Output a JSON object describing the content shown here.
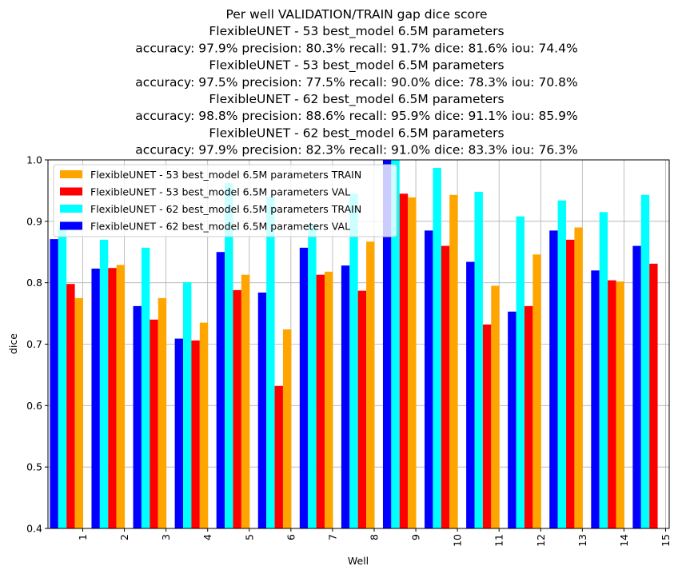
{
  "chart_data": {
    "type": "bar",
    "title_lines": [
      "Per well VALIDATION/TRAIN gap dice score",
      "FlexibleUNET - 53 best_model 6.5M parameters",
      "accuracy: 97.9% precision: 80.3% recall: 91.7% dice: 81.6% iou: 74.4%",
      "FlexibleUNET - 53 best_model 6.5M parameters",
      "accuracy: 97.5% precision: 77.5% recall: 90.0% dice: 78.3% iou: 70.8%",
      "FlexibleUNET - 62 best_model 6.5M parameters",
      "accuracy: 98.8% precision: 88.6% recall: 95.9% dice: 91.1% iou: 85.9%",
      "FlexibleUNET - 62 best_model 6.5M parameters",
      "accuracy: 97.9% precision: 82.3% recall: 91.0% dice: 83.3% iou: 76.3%"
    ],
    "xlabel": "Well",
    "ylabel": "dice",
    "ylim": [
      0.4,
      1.0
    ],
    "yticks": [
      "0.4",
      "0.5",
      "0.6",
      "0.7",
      "0.8",
      "0.9",
      "1.0"
    ],
    "grid": true,
    "legend_position": "top-left",
    "categories": [
      "1",
      "2",
      "3",
      "4",
      "5",
      "6",
      "7",
      "8",
      "9",
      "10",
      "11",
      "12",
      "13",
      "14",
      "15"
    ],
    "series": [
      {
        "name": "FlexibleUNET - 62 best_model 6.5M parameters VAL",
        "color": "#0000ff",
        "values": [
          0.871,
          0.823,
          0.762,
          0.709,
          0.85,
          0.784,
          0.857,
          0.828,
          1.0,
          0.885,
          0.834,
          0.753,
          0.885,
          0.82,
          0.86
        ]
      },
      {
        "name": "FlexibleUNET - 62 best_model 6.5M parameters TRAIN",
        "color": "#00ffff",
        "values": [
          0.893,
          0.87,
          0.857,
          0.801,
          0.962,
          0.94,
          0.895,
          0.945,
          1.0,
          0.987,
          0.948,
          0.908,
          0.934,
          0.915,
          0.943
        ]
      },
      {
        "name": "FlexibleUNET - 53 best_model 6.5M parameters VAL",
        "color": "#ff0000",
        "values": [
          0.798,
          0.824,
          0.74,
          0.706,
          0.788,
          0.632,
          0.813,
          0.787,
          0.945,
          0.86,
          0.732,
          0.762,
          0.87,
          0.804,
          0.831
        ]
      },
      {
        "name": "FlexibleUNET - 53 best_model 6.5M parameters TRAIN",
        "color": "#ffa500",
        "values": [
          0.775,
          0.829,
          0.775,
          0.735,
          0.813,
          0.724,
          0.818,
          0.867,
          0.939,
          0.943,
          0.795,
          0.846,
          0.89,
          0.802,
          null
        ]
      }
    ],
    "legend_order": [
      3,
      2,
      1,
      0
    ]
  }
}
